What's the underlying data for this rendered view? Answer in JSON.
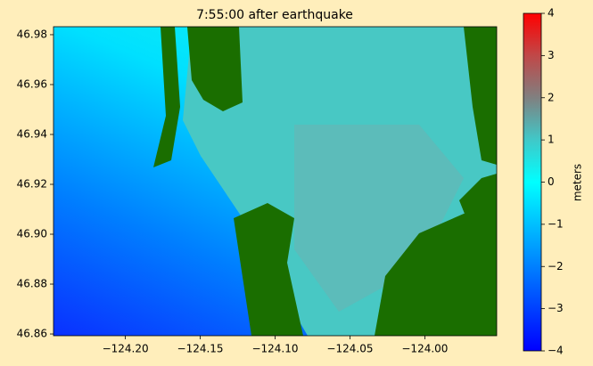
{
  "chart_data": {
    "type": "map",
    "title": "7:55:00 after earthquake",
    "xlim": [
      -124.248,
      -123.952
    ],
    "ylim": [
      46.8593,
      46.9832
    ],
    "xticks": [
      {
        "value": -124.2,
        "label": "−124.20"
      },
      {
        "value": -124.15,
        "label": "−124.15"
      },
      {
        "value": -124.1,
        "label": "−124.10"
      },
      {
        "value": -124.05,
        "label": "−124.05"
      },
      {
        "value": -124.0,
        "label": "−124.00"
      }
    ],
    "yticks": [
      {
        "value": 46.86,
        "label": "46.86"
      },
      {
        "value": 46.88,
        "label": "46.88"
      },
      {
        "value": 46.9,
        "label": "46.90"
      },
      {
        "value": 46.92,
        "label": "46.92"
      },
      {
        "value": 46.94,
        "label": "46.94"
      },
      {
        "value": 46.96,
        "label": "46.96"
      },
      {
        "value": 46.98,
        "label": "46.98"
      }
    ],
    "colorbar": {
      "label": "meters",
      "clim": [
        -4,
        4
      ],
      "ticks": [
        {
          "value": -4,
          "label": "−4"
        },
        {
          "value": -3,
          "label": "−3"
        },
        {
          "value": -2,
          "label": "−2"
        },
        {
          "value": -1,
          "label": "−1"
        },
        0,
        1,
        2,
        3,
        4
      ]
    }
  }
}
